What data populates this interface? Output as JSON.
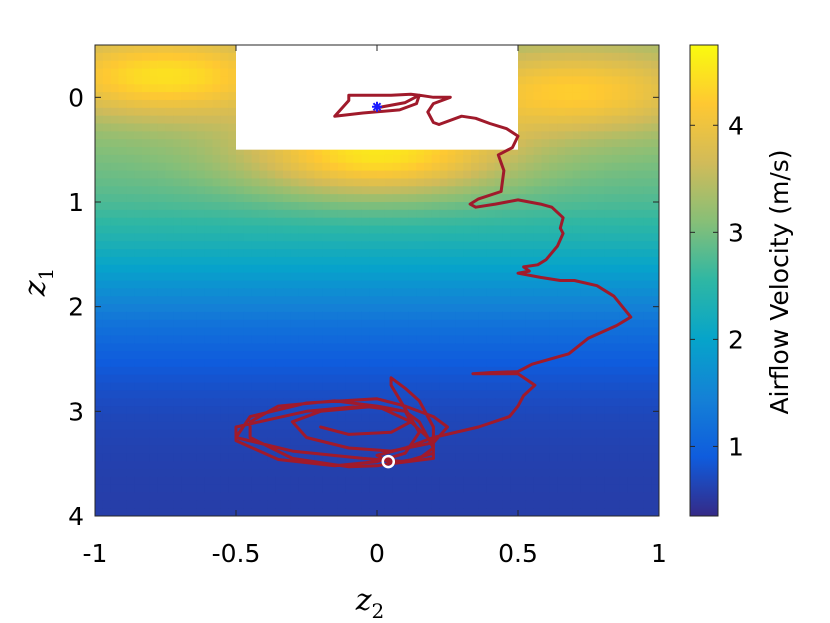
{
  "chart_data": {
    "type": "heatmap",
    "title": "",
    "xlabel": "z",
    "xlabel_sub": "2",
    "ylabel": "z",
    "ylabel_sub": "1",
    "xlim": [
      -1,
      1
    ],
    "ylim": [
      4,
      -0.5
    ],
    "y_reversed": true,
    "x_ticks": [
      -1,
      -0.5,
      0,
      0.5,
      1
    ],
    "x_tick_labels": [
      "-1",
      "-0.5",
      "0",
      "0.5",
      "1"
    ],
    "y_ticks": [
      0,
      1,
      2,
      3,
      4
    ],
    "y_tick_labels": [
      "0",
      "1",
      "2",
      "3",
      "4"
    ],
    "grid": false,
    "heatmap": {
      "description_of_field": "airflow velocity over (z2, z1)",
      "colormap": "parula",
      "obstacle_region": {
        "x": [
          -0.5,
          0.5
        ],
        "y": [
          -0.5,
          0.5
        ],
        "color": "#ffffff"
      },
      "peaks": [
        {
          "z2": -0.75,
          "z1": -0.2,
          "value": 4.4
        },
        {
          "z2": 0.0,
          "z1": 0.55,
          "value": 4.6
        },
        {
          "z2": 0.7,
          "z1": -0.05,
          "value": 4.2
        }
      ]
    },
    "colorbar": {
      "label": "Airflow Velocity (m/s)",
      "range": [
        0.35,
        4.75
      ],
      "ticks": [
        1,
        2,
        3,
        4
      ],
      "tick_labels": [
        "1",
        "2",
        "3",
        "4"
      ],
      "colors": [
        "#352a87",
        "#0f5cdd",
        "#1481d6",
        "#06a4ca",
        "#2eb7a4",
        "#87bf77",
        "#d1bb59",
        "#fec832",
        "#f9fb0e"
      ]
    },
    "series": [
      {
        "type": "line",
        "color": "#a01a2b",
        "points": [
          [
            0.0,
            0.1
          ],
          [
            0.1,
            0.05
          ],
          [
            0.15,
            -0.02
          ],
          [
            0.14,
            0.06
          ],
          [
            0.08,
            0.12
          ],
          [
            -0.05,
            0.15
          ],
          [
            -0.15,
            0.18
          ],
          [
            -0.1,
            0.03
          ],
          [
            -0.1,
            -0.02
          ],
          [
            0.05,
            -0.02
          ],
          [
            0.12,
            -0.03
          ],
          [
            0.15,
            -0.02
          ],
          [
            0.2,
            0.0
          ],
          [
            0.26,
            0.0
          ],
          [
            0.2,
            0.06
          ],
          [
            0.18,
            0.14
          ],
          [
            0.2,
            0.24
          ],
          [
            0.22,
            0.26
          ],
          [
            0.3,
            0.18
          ],
          [
            0.35,
            0.2
          ],
          [
            0.4,
            0.25
          ],
          [
            0.46,
            0.3
          ],
          [
            0.5,
            0.37
          ],
          [
            0.48,
            0.48
          ],
          [
            0.43,
            0.55
          ],
          [
            0.45,
            0.7
          ],
          [
            0.44,
            0.9
          ],
          [
            0.36,
            0.97
          ],
          [
            0.33,
            1.02
          ],
          [
            0.35,
            1.05
          ],
          [
            0.42,
            1.02
          ],
          [
            0.5,
            0.98
          ],
          [
            0.58,
            1.02
          ],
          [
            0.62,
            1.05
          ],
          [
            0.66,
            1.15
          ],
          [
            0.65,
            1.25
          ],
          [
            0.66,
            1.3
          ],
          [
            0.64,
            1.42
          ],
          [
            0.6,
            1.55
          ],
          [
            0.57,
            1.6
          ],
          [
            0.52,
            1.62
          ],
          [
            0.54,
            1.66
          ],
          [
            0.5,
            1.68
          ],
          [
            0.58,
            1.72
          ],
          [
            0.65,
            1.75
          ],
          [
            0.7,
            1.75
          ],
          [
            0.78,
            1.8
          ],
          [
            0.84,
            1.9
          ],
          [
            0.9,
            2.1
          ],
          [
            0.85,
            2.18
          ],
          [
            0.75,
            2.3
          ],
          [
            0.68,
            2.45
          ],
          [
            0.55,
            2.55
          ],
          [
            0.5,
            2.62
          ],
          [
            0.4,
            2.63
          ],
          [
            0.34,
            2.64
          ],
          [
            0.5,
            2.64
          ],
          [
            0.56,
            2.75
          ],
          [
            0.52,
            2.85
          ],
          [
            0.5,
            2.95
          ],
          [
            0.47,
            3.05
          ],
          [
            0.36,
            3.15
          ],
          [
            0.2,
            3.25
          ],
          [
            0.1,
            3.35
          ],
          [
            0.0,
            3.42
          ],
          [
            0.05,
            3.5
          ],
          [
            0.2,
            3.45
          ],
          [
            0.2,
            3.3
          ],
          [
            0.12,
            3.1
          ],
          [
            0.0,
            2.95
          ],
          [
            -0.15,
            2.9
          ],
          [
            -0.35,
            2.95
          ],
          [
            -0.45,
            3.1
          ],
          [
            -0.45,
            3.25
          ],
          [
            -0.3,
            3.45
          ],
          [
            -0.1,
            3.53
          ],
          [
            0.0,
            3.52
          ],
          [
            0.15,
            3.45
          ],
          [
            0.2,
            3.35
          ],
          [
            0.15,
            3.1
          ],
          [
            0.1,
            3.0
          ],
          [
            -0.05,
            2.95
          ],
          [
            -0.25,
            3.0
          ],
          [
            -0.5,
            3.15
          ],
          [
            -0.5,
            3.28
          ],
          [
            -0.35,
            3.46
          ],
          [
            -0.15,
            3.52
          ],
          [
            0.0,
            3.48
          ],
          [
            0.1,
            3.4
          ],
          [
            0.15,
            3.2
          ],
          [
            0.05,
            2.75
          ],
          [
            0.05,
            2.68
          ],
          [
            0.1,
            2.78
          ],
          [
            0.15,
            2.9
          ],
          [
            0.2,
            3.15
          ],
          [
            0.2,
            3.4
          ],
          [
            0.1,
            3.48
          ],
          [
            -0.05,
            3.45
          ],
          [
            -0.3,
            3.38
          ],
          [
            -0.5,
            3.25
          ],
          [
            -0.45,
            3.05
          ],
          [
            -0.25,
            2.92
          ],
          [
            0.0,
            2.88
          ],
          [
            0.1,
            2.95
          ],
          [
            0.2,
            3.05
          ],
          [
            0.25,
            3.15
          ],
          [
            0.2,
            3.3
          ],
          [
            0.05,
            3.38
          ],
          [
            -0.1,
            3.35
          ],
          [
            -0.25,
            3.25
          ],
          [
            -0.3,
            3.1
          ],
          [
            -0.2,
            3.0
          ],
          [
            0.0,
            2.95
          ],
          [
            0.1,
            3.0
          ],
          [
            0.12,
            3.1
          ],
          [
            0.05,
            3.2
          ],
          [
            -0.1,
            3.22
          ],
          [
            -0.2,
            3.15
          ]
        ]
      }
    ],
    "markers": [
      {
        "name": "start",
        "z2": 0.04,
        "z1": 3.48,
        "shape": "circle",
        "color": "#ffffff"
      },
      {
        "name": "goal",
        "z2": 0.0,
        "z1": 0.09,
        "shape": "asterisk",
        "color": "#1a1aff"
      }
    ]
  }
}
